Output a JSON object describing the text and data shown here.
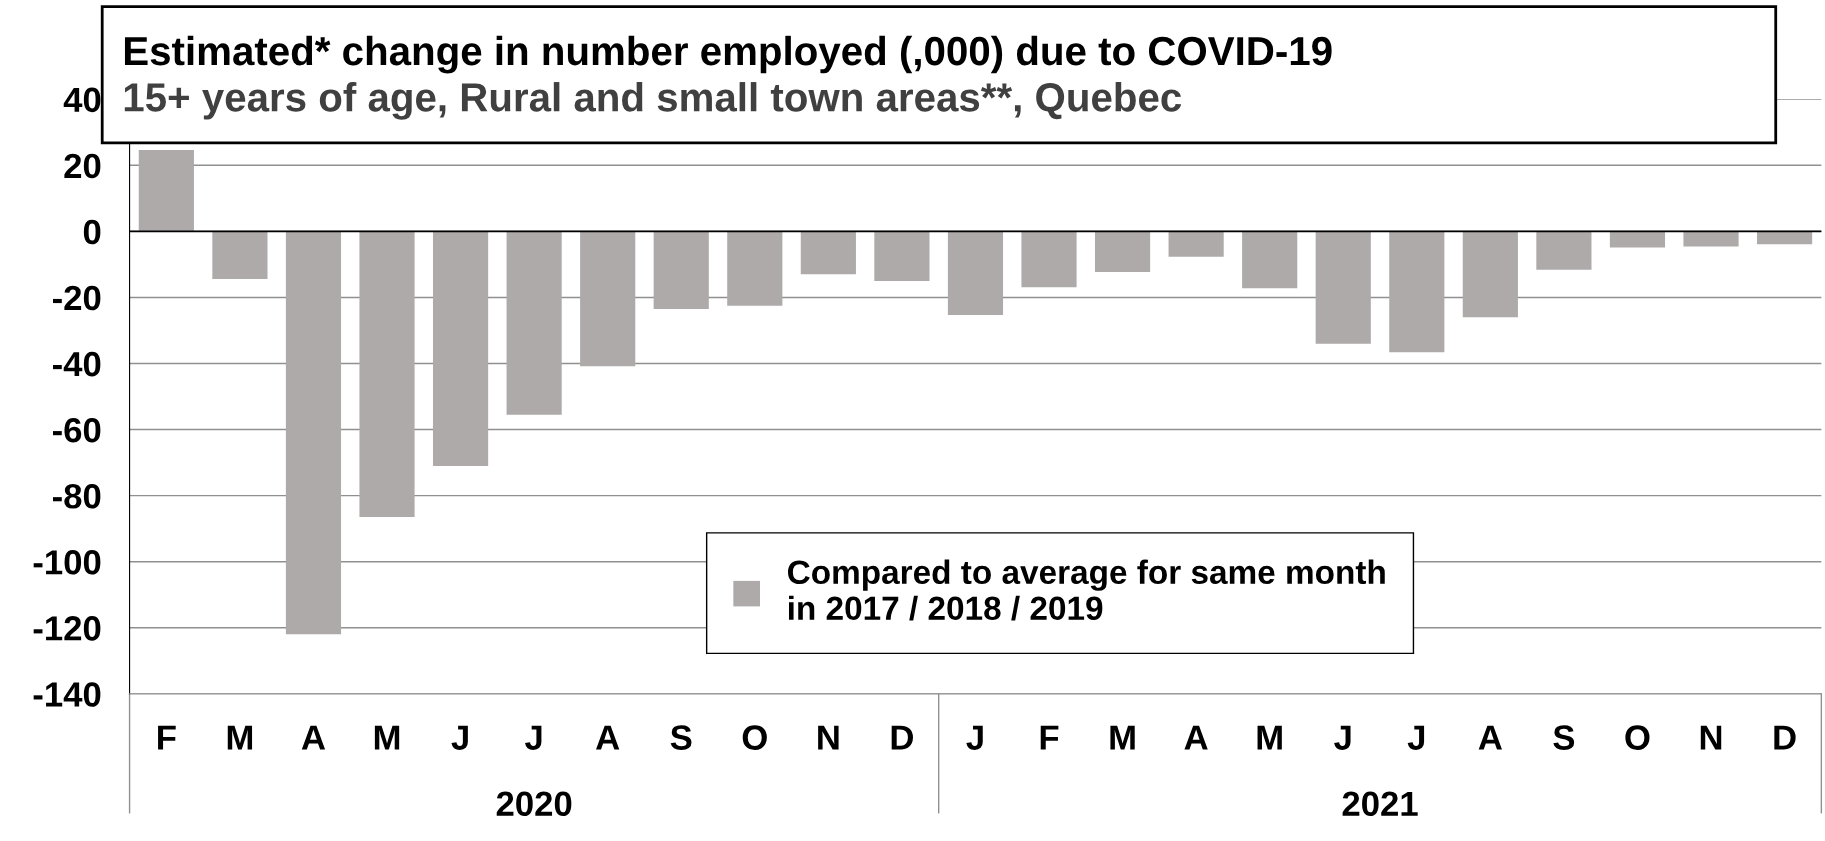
{
  "chart_data": {
    "type": "bar",
    "title": "Estimated* change in number employed (,000) due to COVID-19",
    "subtitle": "15+ years of age, Rural and small town areas**, Quebec",
    "categories": [
      "F",
      "M",
      "A",
      "M",
      "J",
      "J",
      "A",
      "S",
      "O",
      "N",
      "D",
      "J",
      "F",
      "M",
      "A",
      "M",
      "J",
      "J",
      "A",
      "S",
      "O",
      "N",
      "D"
    ],
    "series": [
      {
        "name": "Compared to average for same month\nin 2017 / 2018 / 2019",
        "color": "#aeaaaa",
        "values": [
          24.6,
          -14.4,
          -122,
          -86.5,
          -71,
          -55.5,
          -40.8,
          -23.5,
          -22.5,
          -13,
          -15,
          -25.3,
          -16.9,
          -12.3,
          -7.7,
          -17.2,
          -34,
          -36.6,
          -26,
          -11.6,
          -4.9,
          -4.6,
          -3.9
        ]
      }
    ],
    "annotations": [
      "2020",
      "2021"
    ],
    "ylim": [
      -140,
      40
    ],
    "yticks": [
      -140,
      -120,
      -100,
      -80,
      -60,
      -40,
      -20,
      0,
      20,
      40
    ],
    "grid": "y",
    "legend": "bottom"
  }
}
